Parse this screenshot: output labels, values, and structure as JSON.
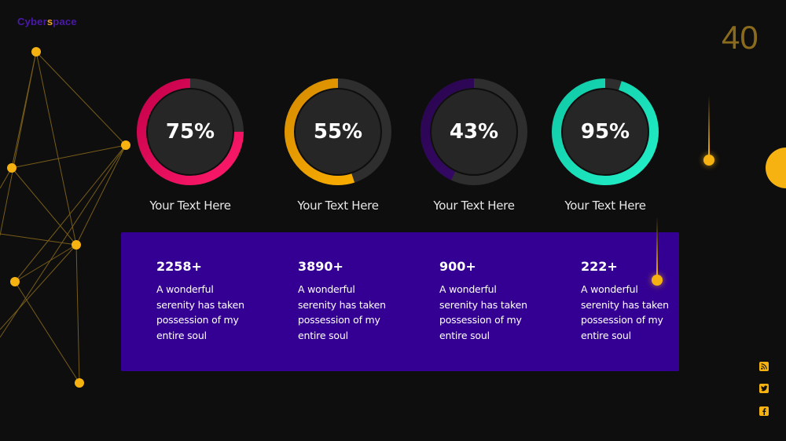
{
  "logo": {
    "part1": "Cyber",
    "part2": "s",
    "part3": "pace"
  },
  "page_number": "40",
  "gauges": [
    {
      "value": "75%",
      "fraction": 0.75,
      "color_start": "#ff1a6b",
      "color_end": "#c4004a",
      "caption": "Your Text Here"
    },
    {
      "value": "55%",
      "fraction": 0.55,
      "color_start": "#ffb300",
      "color_end": "#d68b00",
      "caption": "Your Text Here"
    },
    {
      "value": "43%",
      "fraction": 0.43,
      "color_start": "#3a0a6e",
      "color_end": "#2a0550",
      "caption": "Your Text Here"
    },
    {
      "value": "95%",
      "fraction": 0.95,
      "color_start": "#22f0c8",
      "color_end": "#10c9a6",
      "caption": "Your Text Here"
    }
  ],
  "stats": [
    {
      "number": "2258+",
      "line1": "A wonderful",
      "line2": "serenity has taken",
      "line3": "possession of my",
      "line4": "entire soul"
    },
    {
      "number": "3890+",
      "line1": "A wonderful",
      "line2": "serenity has taken",
      "line3": "possession of my",
      "line4": "entire soul"
    },
    {
      "number": "900+",
      "line1": "A wonderful",
      "line2": "serenity has taken",
      "line3": "possession of my",
      "line4": "entire soul"
    },
    {
      "number": "222+",
      "line1": "A wonderful",
      "line2": "serenity has taken",
      "line3": "possession of my",
      "line4": "entire soul"
    }
  ],
  "social_icons": [
    "rss-icon",
    "twitter-icon",
    "facebook-icon"
  ],
  "colors": {
    "accent": "#f5b211",
    "panel": "#330093",
    "background": "#0e0e0e"
  }
}
